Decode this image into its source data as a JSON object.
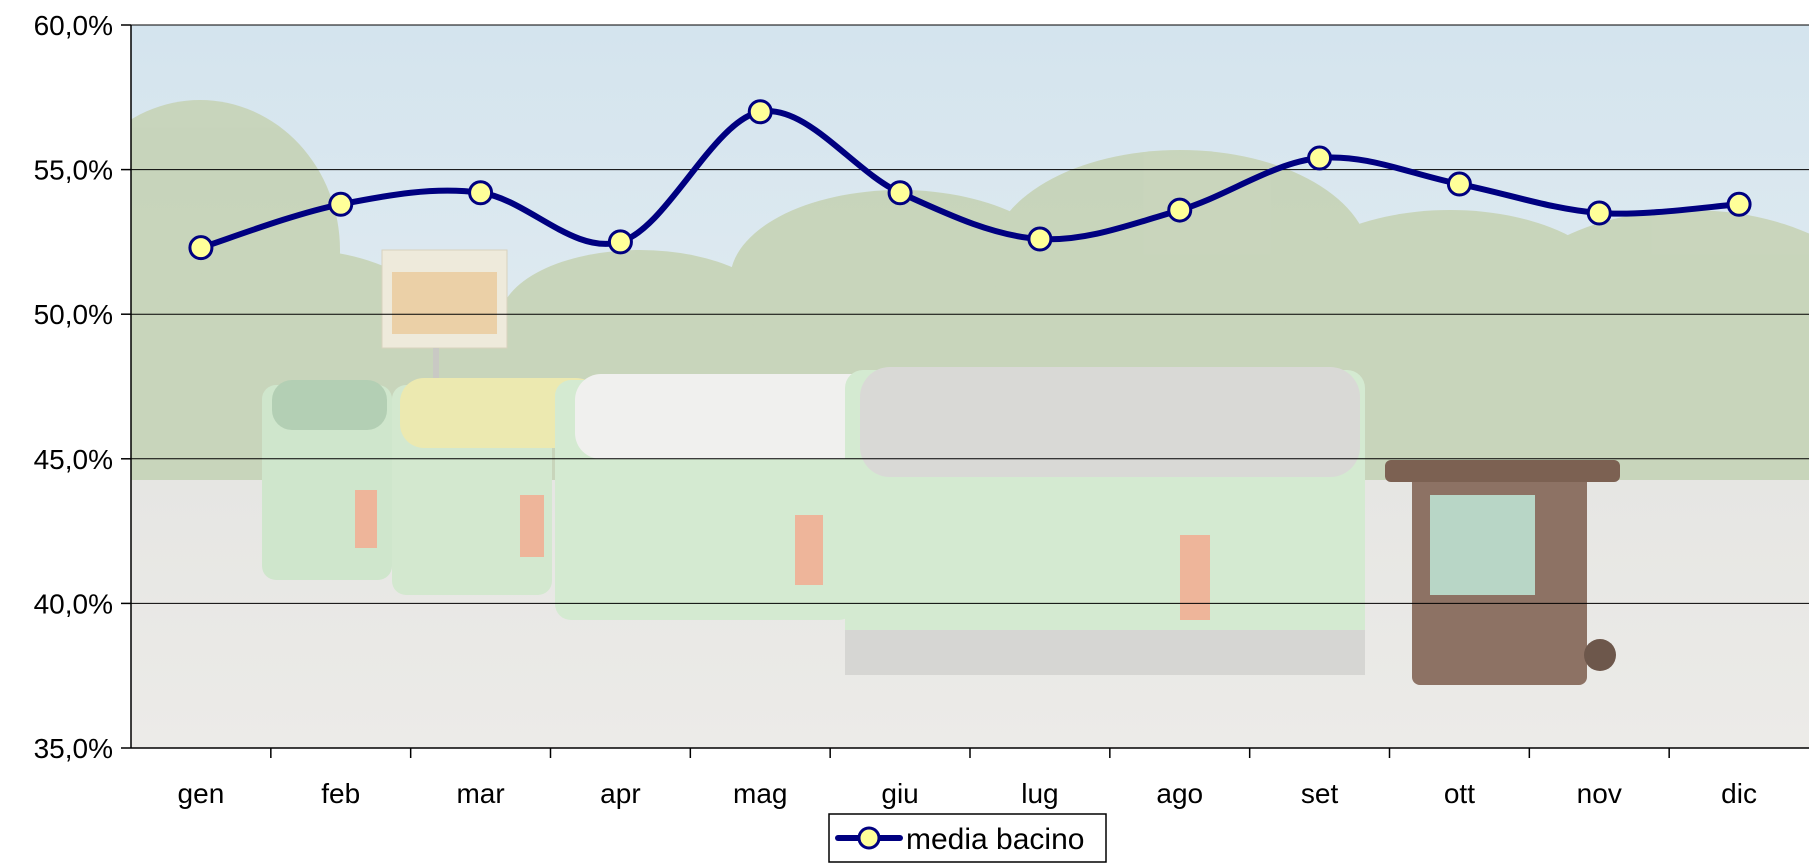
{
  "chart_data": {
    "type": "line",
    "title": "",
    "xlabel": "",
    "ylabel": "",
    "categories": [
      "gen",
      "feb",
      "mar",
      "apr",
      "mag",
      "giu",
      "lug",
      "ago",
      "set",
      "ott",
      "nov",
      "dic"
    ],
    "series": [
      {
        "name": "media bacino",
        "values": [
          52.3,
          53.8,
          54.2,
          52.5,
          57.0,
          54.2,
          52.6,
          53.6,
          55.4,
          54.5,
          53.5,
          53.8
        ],
        "color": "#000080",
        "marker_color": "#ffff99"
      }
    ],
    "ylim": [
      35,
      60
    ],
    "y_ticks": [
      35,
      40,
      45,
      50,
      55,
      60
    ],
    "y_tick_labels": [
      "35,0%",
      "40,0%",
      "45,0%",
      "50,0%",
      "55,0%",
      "60,0%"
    ],
    "grid": true,
    "legend_position": "bottom",
    "background": "photo of recycling containers in a park"
  }
}
